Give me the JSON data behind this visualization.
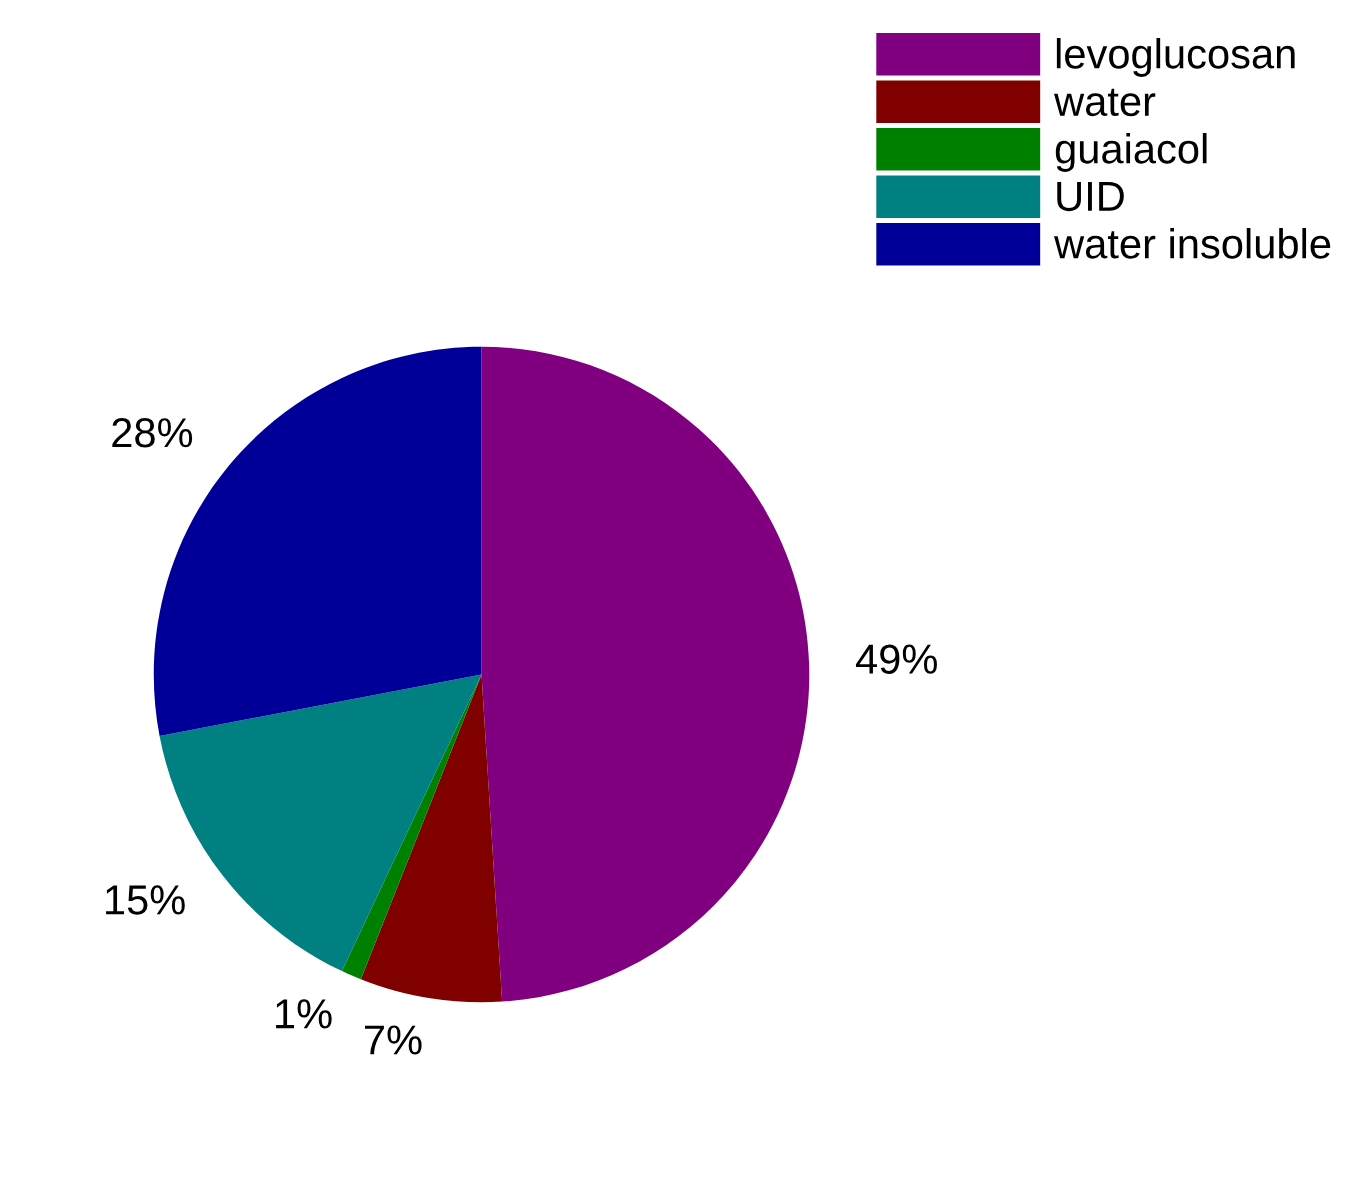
{
  "chart_data": {
    "type": "pie",
    "categories": [
      "levoglucosan",
      "water",
      "guaiacol",
      "UID",
      "water insoluble"
    ],
    "values": [
      49,
      7,
      1,
      15,
      28
    ],
    "colors": [
      "#800080",
      "#800000",
      "#008000",
      "#008080",
      "#000099"
    ],
    "value_labels": [
      "49%",
      "7%",
      "1%",
      "15%",
      "28%"
    ],
    "legend": "top right"
  }
}
